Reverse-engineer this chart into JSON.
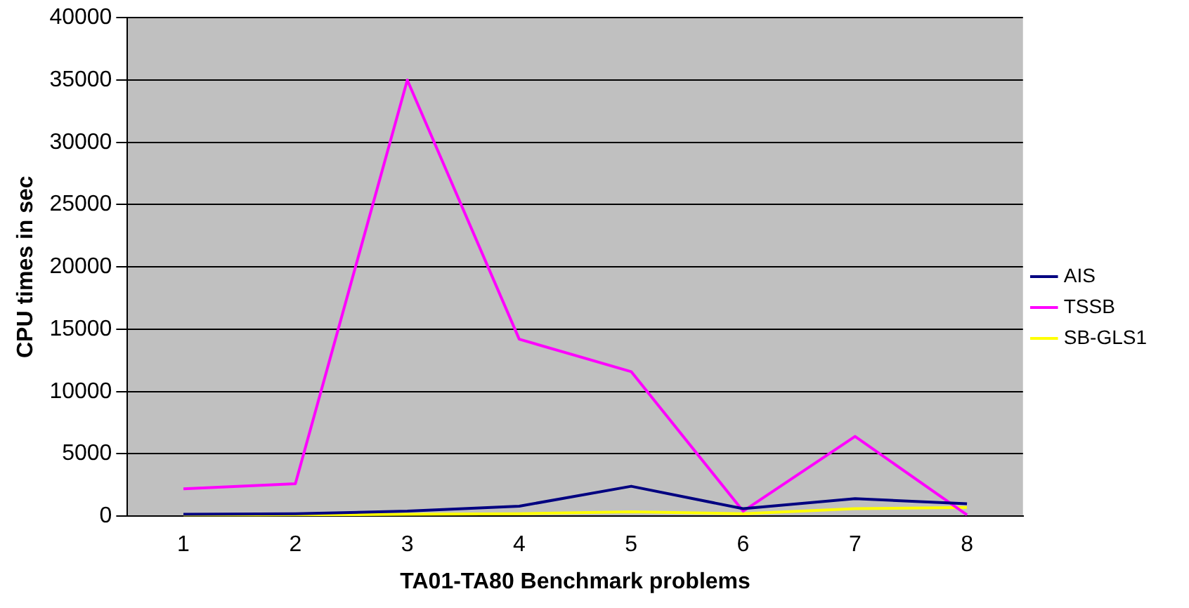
{
  "chart_data": {
    "type": "line",
    "xlabel": "TA01-TA80 Benchmark problems",
    "ylabel": "CPU times in sec",
    "categories": [
      "1",
      "2",
      "3",
      "4",
      "5",
      "6",
      "7",
      "8"
    ],
    "series": [
      {
        "name": "AIS",
        "color": "#000080",
        "values": [
          150,
          200,
          400,
          800,
          2400,
          600,
          1400,
          1000
        ]
      },
      {
        "name": "TSSB",
        "color": "#ff00ff",
        "values": [
          2200,
          2600,
          35000,
          14200,
          11600,
          400,
          6400,
          100
        ]
      },
      {
        "name": "SB-GLS1",
        "color": "#ffff00",
        "values": [
          0,
          100,
          150,
          200,
          350,
          200,
          600,
          700
        ]
      }
    ],
    "ylim": [
      0,
      40000
    ],
    "yticks": [
      0,
      5000,
      10000,
      15000,
      20000,
      25000,
      30000,
      35000,
      40000
    ],
    "grid": "y",
    "legend": "right",
    "marker": "none",
    "line_style": "solid"
  }
}
